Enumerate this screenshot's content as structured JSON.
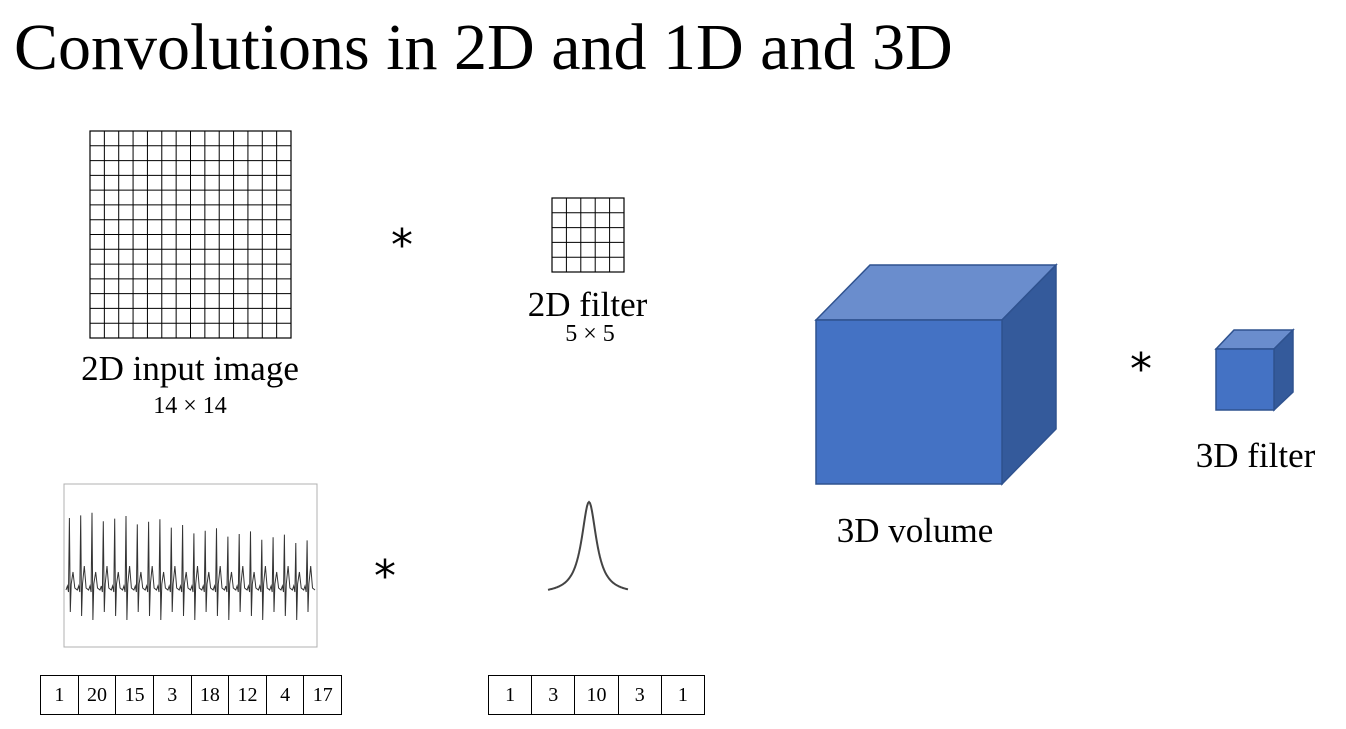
{
  "title": "Convolutions in 2D and 1D and 3D",
  "input_2d": {
    "label": "2D input image",
    "size": "14 × 14",
    "grid_n": 14
  },
  "filter_2d": {
    "label": "2D filter",
    "size": "5 × 5",
    "grid_n": 5
  },
  "volume_3d": {
    "label": "3D volume",
    "color_front": "#4472C4",
    "color_top": "#6A8DCD",
    "color_side": "#345A9B",
    "edge": "#2F528F"
  },
  "filter_3d": {
    "label": "3D filter"
  },
  "operator": "*",
  "signal_1d": {
    "values": [
      "1",
      "20",
      "15",
      "3",
      "18",
      "12",
      "4",
      "17"
    ]
  },
  "filter_1d": {
    "values": [
      "1",
      "3",
      "10",
      "3",
      "1"
    ]
  }
}
